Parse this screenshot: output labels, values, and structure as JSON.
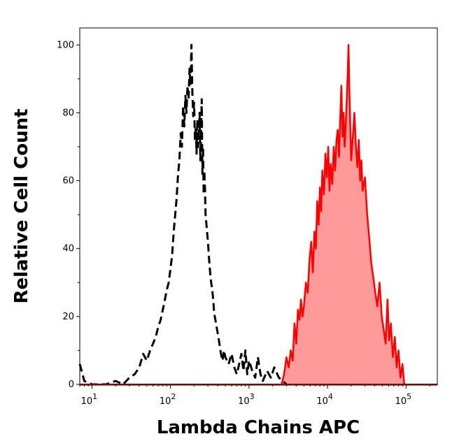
{
  "chart_data": {
    "type": "area",
    "xlabel": "Lambda Chains APC",
    "ylabel": "Relative Cell Count",
    "x_scale": "log",
    "xlim": [
      7,
      250000
    ],
    "ylim": [
      0,
      105
    ],
    "x_ticks": [
      {
        "value": 10,
        "base": "10",
        "exp": "1"
      },
      {
        "value": 100,
        "base": "10",
        "exp": "2"
      },
      {
        "value": 1000,
        "base": "10",
        "exp": "3"
      },
      {
        "value": 10000,
        "base": "10",
        "exp": "4"
      },
      {
        "value": 100000,
        "base": "10",
        "exp": "5"
      }
    ],
    "y_ticks": [
      "0",
      "20",
      "40",
      "60",
      "80",
      "100"
    ],
    "grid": false,
    "legend": "none",
    "series": [
      {
        "style": "dashed",
        "color": "#000000",
        "fill": "none",
        "points": [
          [
            7,
            6
          ],
          [
            8,
            1
          ],
          [
            10,
            0
          ],
          [
            15,
            0
          ],
          [
            20,
            1
          ],
          [
            25,
            0
          ],
          [
            30,
            2
          ],
          [
            35,
            3
          ],
          [
            40,
            5
          ],
          [
            45,
            9
          ],
          [
            50,
            7
          ],
          [
            55,
            10
          ],
          [
            60,
            12
          ],
          [
            65,
            14
          ],
          [
            70,
            17
          ],
          [
            75,
            19
          ],
          [
            80,
            22
          ],
          [
            85,
            25
          ],
          [
            90,
            28
          ],
          [
            95,
            30
          ],
          [
            100,
            34
          ],
          [
            105,
            38
          ],
          [
            110,
            45
          ],
          [
            115,
            50
          ],
          [
            120,
            55
          ],
          [
            125,
            62
          ],
          [
            130,
            66
          ],
          [
            135,
            74
          ],
          [
            140,
            70
          ],
          [
            145,
            82
          ],
          [
            150,
            76
          ],
          [
            155,
            85
          ],
          [
            160,
            80
          ],
          [
            165,
            88
          ],
          [
            170,
            84
          ],
          [
            175,
            93
          ],
          [
            180,
            88
          ],
          [
            185,
            100
          ],
          [
            190,
            86
          ],
          [
            195,
            79
          ],
          [
            200,
            83
          ],
          [
            205,
            72
          ],
          [
            210,
            76
          ],
          [
            215,
            68
          ],
          [
            220,
            78
          ],
          [
            225,
            70
          ],
          [
            230,
            74
          ],
          [
            235,
            80
          ],
          [
            240,
            66
          ],
          [
            245,
            73
          ],
          [
            250,
            84
          ],
          [
            255,
            62
          ],
          [
            260,
            70
          ],
          [
            265,
            56
          ],
          [
            270,
            63
          ],
          [
            275,
            58
          ],
          [
            280,
            50
          ],
          [
            290,
            46
          ],
          [
            300,
            42
          ],
          [
            310,
            37
          ],
          [
            320,
            33
          ],
          [
            330,
            30
          ],
          [
            340,
            28
          ],
          [
            350,
            25
          ],
          [
            360,
            21
          ],
          [
            380,
            18
          ],
          [
            400,
            15
          ],
          [
            420,
            12
          ],
          [
            440,
            9
          ],
          [
            460,
            7
          ],
          [
            480,
            10
          ],
          [
            500,
            8
          ],
          [
            550,
            6
          ],
          [
            600,
            9
          ],
          [
            650,
            5
          ],
          [
            700,
            3
          ],
          [
            750,
            6
          ],
          [
            800,
            9
          ],
          [
            850,
            4
          ],
          [
            900,
            10
          ],
          [
            950,
            3
          ],
          [
            1000,
            7
          ],
          [
            1100,
            4
          ],
          [
            1200,
            2
          ],
          [
            1300,
            8
          ],
          [
            1400,
            3
          ],
          [
            1500,
            1
          ],
          [
            1700,
            4
          ],
          [
            1900,
            2
          ],
          [
            2100,
            5
          ],
          [
            2400,
            2
          ],
          [
            2700,
            1
          ],
          [
            3000,
            0
          ]
        ]
      },
      {
        "style": "solid",
        "color": "#ff0000",
        "fill": "#ff9a9a",
        "points": [
          [
            2600,
            0
          ],
          [
            2800,
            3
          ],
          [
            3000,
            8
          ],
          [
            3200,
            5
          ],
          [
            3400,
            10
          ],
          [
            3600,
            7
          ],
          [
            3800,
            18
          ],
          [
            4000,
            12
          ],
          [
            4200,
            22
          ],
          [
            4400,
            19
          ],
          [
            4600,
            25
          ],
          [
            4800,
            20
          ],
          [
            5000,
            23
          ],
          [
            5300,
            30
          ],
          [
            5600,
            27
          ],
          [
            5900,
            37
          ],
          [
            6200,
            42
          ],
          [
            6500,
            33
          ],
          [
            6800,
            45
          ],
          [
            7100,
            40
          ],
          [
            7400,
            54
          ],
          [
            7700,
            47
          ],
          [
            8000,
            58
          ],
          [
            8300,
            51
          ],
          [
            8600,
            63
          ],
          [
            9000,
            56
          ],
          [
            9400,
            68
          ],
          [
            9800,
            61
          ],
          [
            10200,
            70
          ],
          [
            10600,
            57
          ],
          [
            11000,
            65
          ],
          [
            11500,
            59
          ],
          [
            12000,
            70
          ],
          [
            12500,
            63
          ],
          [
            13000,
            72
          ],
          [
            13500,
            75
          ],
          [
            14000,
            67
          ],
          [
            14500,
            78
          ],
          [
            15000,
            88
          ],
          [
            15500,
            73
          ],
          [
            16000,
            80
          ],
          [
            16500,
            70
          ],
          [
            17000,
            76
          ],
          [
            17500,
            83
          ],
          [
            18000,
            90
          ],
          [
            18500,
            100
          ],
          [
            19000,
            86
          ],
          [
            19500,
            76
          ],
          [
            20000,
            66
          ],
          [
            21000,
            73
          ],
          [
            22000,
            80
          ],
          [
            23000,
            70
          ],
          [
            24000,
            64
          ],
          [
            25000,
            72
          ],
          [
            26000,
            60
          ],
          [
            27000,
            66
          ],
          [
            28000,
            57
          ],
          [
            30000,
            61
          ],
          [
            32000,
            50
          ],
          [
            34000,
            43
          ],
          [
            36000,
            36
          ],
          [
            38000,
            32
          ],
          [
            40000,
            28
          ],
          [
            43000,
            23
          ],
          [
            46000,
            30
          ],
          [
            49000,
            20
          ],
          [
            52000,
            16
          ],
          [
            55000,
            12
          ],
          [
            58000,
            25
          ],
          [
            61000,
            13
          ],
          [
            64000,
            18
          ],
          [
            68000,
            8
          ],
          [
            72000,
            14
          ],
          [
            76000,
            5
          ],
          [
            80000,
            10
          ],
          [
            85000,
            2
          ],
          [
            90000,
            6
          ],
          [
            95000,
            0
          ],
          [
            100000,
            0
          ]
        ]
      }
    ]
  }
}
